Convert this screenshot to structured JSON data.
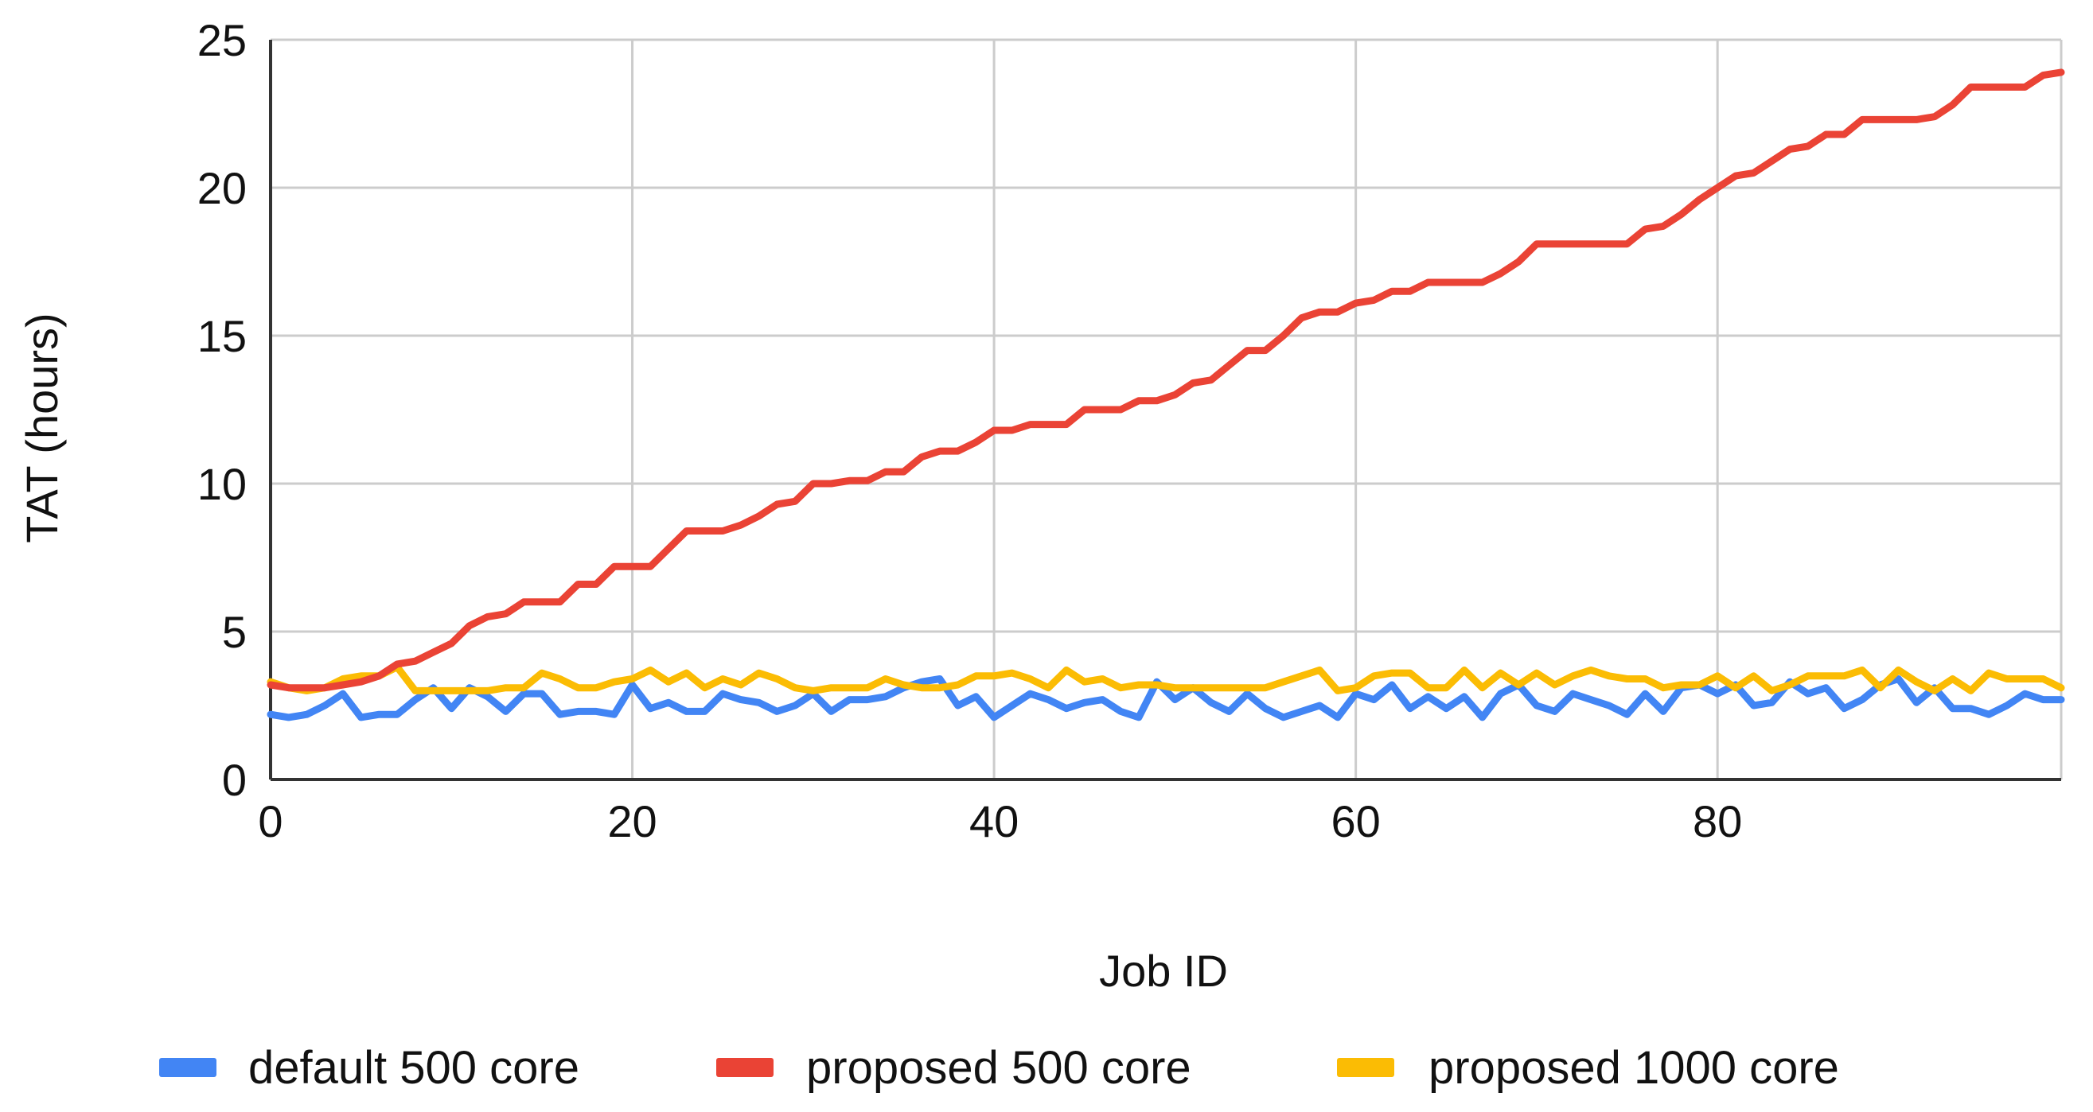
{
  "chart_data": {
    "type": "line",
    "title": "",
    "xlabel": "Job ID",
    "ylabel": "TAT (hours)",
    "xlim": [
      0,
      99
    ],
    "ylim": [
      0,
      25
    ],
    "xticks": [
      0,
      20,
      40,
      60,
      80
    ],
    "yticks": [
      0,
      5,
      10,
      15,
      20,
      25
    ],
    "grid": true,
    "legend_position": "bottom",
    "series": [
      {
        "name": "default 500 core",
        "color": "#4285f4",
        "values": [
          2.2,
          2.1,
          2.2,
          2.5,
          2.9,
          2.1,
          2.2,
          2.2,
          2.7,
          3.1,
          2.4,
          3.1,
          2.8,
          2.3,
          2.9,
          2.9,
          2.2,
          2.3,
          2.3,
          2.2,
          3.2,
          2.4,
          2.6,
          2.3,
          2.3,
          2.9,
          2.7,
          2.6,
          2.3,
          2.5,
          2.9,
          2.3,
          2.7,
          2.7,
          2.8,
          3.1,
          3.3,
          3.4,
          2.5,
          2.8,
          2.1,
          2.5,
          2.9,
          2.7,
          2.4,
          2.6,
          2.7,
          2.3,
          2.1,
          3.3,
          2.7,
          3.1,
          2.6,
          2.3,
          2.9,
          2.4,
          2.1,
          2.3,
          2.5,
          2.1,
          2.9,
          2.7,
          3.2,
          2.4,
          2.8,
          2.4,
          2.8,
          2.1,
          2.9,
          3.2,
          2.5,
          2.3,
          2.9,
          2.7,
          2.5,
          2.2,
          2.9,
          2.3,
          3.1,
          3.2,
          2.9,
          3.2,
          2.5,
          2.6,
          3.3,
          2.9,
          3.1,
          2.4,
          2.7,
          3.2,
          3.4,
          2.6,
          3.1,
          2.4,
          2.4,
          2.2,
          2.5,
          2.9,
          2.7,
          2.7
        ]
      },
      {
        "name": "proposed 500 core",
        "color": "#ea4335",
        "values": [
          3.2,
          3.1,
          3.1,
          3.1,
          3.2,
          3.3,
          3.5,
          3.9,
          4.0,
          4.3,
          4.6,
          5.2,
          5.5,
          5.6,
          6.0,
          6.0,
          6.0,
          6.6,
          6.6,
          7.2,
          7.2,
          7.2,
          7.8,
          8.4,
          8.4,
          8.4,
          8.6,
          8.9,
          9.3,
          9.4,
          10.0,
          10.0,
          10.1,
          10.1,
          10.4,
          10.4,
          10.9,
          11.1,
          11.1,
          11.4,
          11.8,
          11.8,
          12.0,
          12.0,
          12.0,
          12.5,
          12.5,
          12.5,
          12.8,
          12.8,
          13.0,
          13.4,
          13.5,
          14.0,
          14.5,
          14.5,
          15.0,
          15.6,
          15.8,
          15.8,
          16.1,
          16.2,
          16.5,
          16.5,
          16.8,
          16.8,
          16.8,
          16.8,
          17.1,
          17.5,
          18.1,
          18.1,
          18.1,
          18.1,
          18.1,
          18.1,
          18.6,
          18.7,
          19.1,
          19.6,
          20.0,
          20.4,
          20.5,
          20.9,
          21.3,
          21.4,
          21.8,
          21.8,
          22.3,
          22.3,
          22.3,
          22.3,
          22.4,
          22.8,
          23.4,
          23.4,
          23.4,
          23.4,
          23.8,
          23.9
        ]
      },
      {
        "name": "proposed 1000 core",
        "color": "#fbbc04",
        "values": [
          3.3,
          3.1,
          3.0,
          3.1,
          3.4,
          3.5,
          3.5,
          3.8,
          3.0,
          3.0,
          3.0,
          3.0,
          3.0,
          3.1,
          3.1,
          3.6,
          3.4,
          3.1,
          3.1,
          3.3,
          3.4,
          3.7,
          3.3,
          3.6,
          3.1,
          3.4,
          3.2,
          3.6,
          3.4,
          3.1,
          3.0,
          3.1,
          3.1,
          3.1,
          3.4,
          3.2,
          3.1,
          3.1,
          3.2,
          3.5,
          3.5,
          3.6,
          3.4,
          3.1,
          3.7,
          3.3,
          3.4,
          3.1,
          3.2,
          3.2,
          3.1,
          3.1,
          3.1,
          3.1,
          3.1,
          3.1,
          3.3,
          3.5,
          3.7,
          3.0,
          3.1,
          3.5,
          3.6,
          3.6,
          3.1,
          3.1,
          3.7,
          3.1,
          3.6,
          3.2,
          3.6,
          3.2,
          3.5,
          3.7,
          3.5,
          3.4,
          3.4,
          3.1,
          3.2,
          3.2,
          3.5,
          3.1,
          3.5,
          3.0,
          3.2,
          3.5,
          3.5,
          3.5,
          3.7,
          3.1,
          3.7,
          3.3,
          3.0,
          3.4,
          3.0,
          3.6,
          3.4,
          3.4,
          3.4,
          3.1
        ]
      }
    ]
  }
}
